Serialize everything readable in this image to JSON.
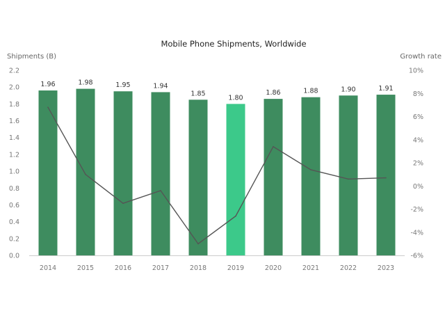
{
  "chart_data": {
    "type": "bar",
    "title": "Mobile Phone Shipments, Worldwide",
    "ylabel": "Shipments (B)",
    "y2label": "Growth rate",
    "categories": [
      "2014",
      "2015",
      "2016",
      "2017",
      "2018",
      "2019",
      "2020",
      "2021",
      "2022",
      "2023"
    ],
    "series": [
      {
        "type": "bar",
        "axis": "left",
        "values": [
          1.96,
          1.98,
          1.95,
          1.94,
          1.85,
          1.8,
          1.86,
          1.88,
          1.9,
          1.91
        ],
        "data_labels": [
          "1.96",
          "1.98",
          "1.95",
          "1.94",
          "1.85",
          "1.80",
          "1.86",
          "1.88",
          "1.90",
          "1.91"
        ],
        "color": "#3e8c5f",
        "highlight": {
          "category": "2019",
          "color": "#3cc98a"
        }
      },
      {
        "type": "line",
        "axis": "right",
        "values": [
          6.8,
          1.0,
          -1.5,
          -0.4,
          -5.0,
          -2.6,
          3.4,
          1.4,
          0.6,
          0.7
        ],
        "color": "#555555"
      }
    ],
    "ylim": [
      0,
      2.2
    ],
    "yticks": [
      "0.0",
      "0.2",
      "0.4",
      "0.6",
      "0.8",
      "1.0",
      "1.2",
      "1.4",
      "1.6",
      "1.8",
      "2.0",
      "2.2"
    ],
    "y2lim": [
      -6,
      10
    ],
    "y2ticks": [
      "-6%",
      "-4%",
      "-2%",
      "0%",
      "2%",
      "4%",
      "6%",
      "8%",
      "10%"
    ],
    "grid": false,
    "legend": "none"
  }
}
